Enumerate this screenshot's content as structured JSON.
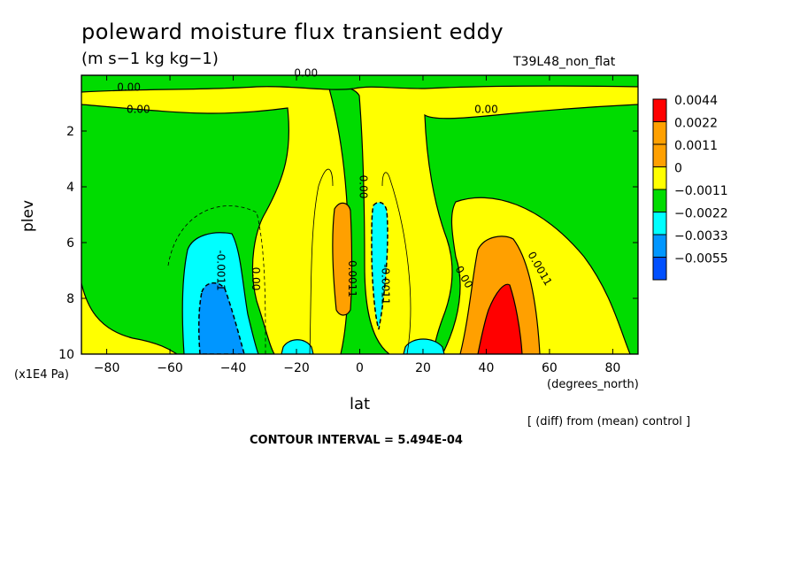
{
  "header": {
    "title": "poleward moisture flux transient eddy",
    "subtitle": "(m s−1 kg kg−1)",
    "run_id": "T39L48_non_flat"
  },
  "footer": {
    "note": "[ (diff) from (mean) control ]",
    "contour_interval": "CONTOUR INTERVAL = 5.494E-04"
  },
  "chart_data": {
    "type": "contour",
    "title": "poleward moisture flux transient eddy",
    "units": "(m s−1 kg kg−1)",
    "xlabel": "lat",
    "xunits": "(degrees_north)",
    "ylabel": "plev",
    "yunits": "(x1E4 Pa)",
    "xlim": [
      -88,
      88
    ],
    "ylim": [
      10,
      0
    ],
    "xticks": [
      -80,
      -60,
      -40,
      -20,
      0,
      20,
      40,
      60,
      80
    ],
    "xtick_labels": [
      "−80",
      "−60",
      "−40",
      "−20",
      "0",
      "20",
      "40",
      "60",
      "80"
    ],
    "yticks": [
      2,
      4,
      6,
      8,
      10
    ],
    "ytick_labels": [
      "2",
      "4",
      "6",
      "8",
      "10"
    ],
    "legend": {
      "placement": "right",
      "levels": [
        {
          "label": "0.0044",
          "color": "#ff0000"
        },
        {
          "label": "0.0022",
          "color": "#ffa000"
        },
        {
          "label": "0.0011",
          "color": "#ffa000"
        },
        {
          "label": "0",
          "color": "#ffff00"
        },
        {
          "label": "−0.0011",
          "color": "#00dc00"
        },
        {
          "label": "−0.0022",
          "color": "#00ffff"
        },
        {
          "label": "−0.0033",
          "color": "#0096ff"
        },
        {
          "label": "−0.0055",
          "color": "#0050ff"
        }
      ]
    },
    "contour_labels": [
      {
        "text": "0.00",
        "lat": -73,
        "plev": 0.55
      },
      {
        "text": "0.00",
        "lat": -70,
        "plev": 1.35
      },
      {
        "text": "0.00",
        "lat": -17,
        "plev": 0.05
      },
      {
        "text": "0.00",
        "lat": 40,
        "plev": 1.35
      },
      {
        "text": "0.00",
        "lat": 0,
        "plev": 4.0
      },
      {
        "text": "0.0011",
        "lat": -3.5,
        "plev": 7.3
      },
      {
        "text": "-0.0011",
        "lat": 7,
        "plev": 7.5
      },
      {
        "text": "-0.0011",
        "lat": -45,
        "plev": 7.0
      },
      {
        "text": "0.00",
        "lat": -34,
        "plev": 7.3
      },
      {
        "text": "0.00",
        "lat": 32,
        "plev": 7.3
      },
      {
        "text": "0.0011",
        "lat": 56,
        "plev": 7.0
      }
    ]
  }
}
